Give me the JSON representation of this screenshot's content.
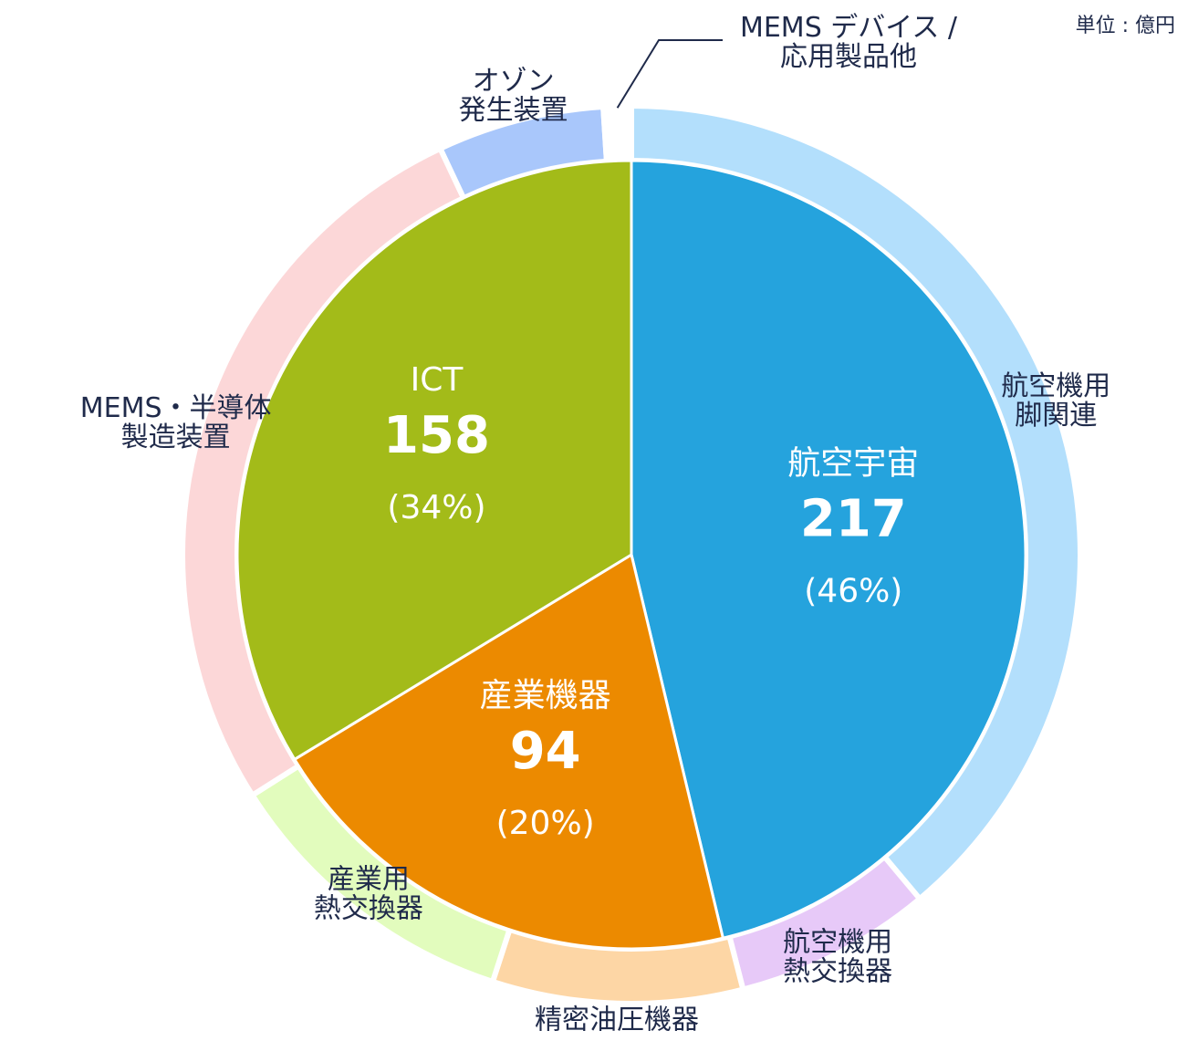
{
  "unit_label": "単位 : 億円",
  "chart_data": {
    "type": "pie",
    "title": "",
    "unit": "単位 : 億円",
    "inner": [
      {
        "name": "航空宇宙",
        "value": 217,
        "percent_label": "(46%)",
        "color": "#25a3dd"
      },
      {
        "name": "産業機器",
        "value": 94,
        "percent_label": "(20%)",
        "color": "#ec8a00"
      },
      {
        "name": "ICT",
        "value": 158,
        "percent_label": "(34%)",
        "color": "#a3bb19"
      }
    ],
    "outer": [
      {
        "label": [
          "航空機用",
          "脚関連"
        ],
        "parent": "航空宇宙",
        "share": 0.389,
        "color": "#b3dffc"
      },
      {
        "label": [
          "航空機用",
          "熱交換器"
        ],
        "parent": "航空宇宙",
        "share": 0.071,
        "color": "#e7c9f8"
      },
      {
        "label": [
          "精密油圧機器"
        ],
        "parent": "産業機器",
        "share": 0.09,
        "color": "#fdd6a5"
      },
      {
        "label": [
          "産業用",
          "熱交換器"
        ],
        "parent": "産業機器",
        "share": 0.11,
        "color": "#e2fcbd"
      },
      {
        "label": [
          "MEMS・半導体",
          "製造装置"
        ],
        "parent": "ICT",
        "share": 0.27,
        "color": "#fcd7d8"
      },
      {
        "label": [
          "オゾン",
          "発生装置"
        ],
        "parent": "ICT",
        "share": 0.06,
        "color": "#a9c7fb"
      },
      {
        "label": [
          "MEMS デバイス /",
          "応用製品他"
        ],
        "parent": "ICT",
        "share": 0.01,
        "color": "#ffffff"
      }
    ]
  }
}
